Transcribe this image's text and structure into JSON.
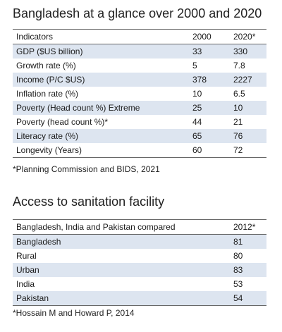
{
  "glance": {
    "title": "Bangladesh at a glance over 2000 and 2020",
    "headers": [
      "Indicators",
      "2000",
      "2020*"
    ],
    "rows": [
      [
        "GDP ($US billion)",
        "33",
        "330"
      ],
      [
        "Growth rate (%)",
        "5",
        "7.8"
      ],
      [
        "Income (P/C $US)",
        "378",
        "2227"
      ],
      [
        "Inflation rate (%)",
        "10",
        "6.5"
      ],
      [
        "Poverty (Head count %) Extreme",
        "25",
        "10"
      ],
      [
        "Poverty (head count %)*",
        "44",
        "21"
      ],
      [
        "Literacy rate (%)",
        "65",
        "76"
      ],
      [
        "Longevity (Years)",
        "60",
        "72"
      ]
    ],
    "note": "*Planning Commission and BIDS, 2021"
  },
  "sanitation": {
    "title": "Access to sanitation facility",
    "headers": [
      "Bangladesh, India and Pakistan compared",
      "2012*"
    ],
    "rows": [
      [
        "Bangladesh",
        "81"
      ],
      [
        "Rural",
        "80"
      ],
      [
        "Urban",
        "83"
      ],
      [
        "India",
        "53"
      ],
      [
        "Pakistan",
        "54"
      ]
    ],
    "note": "*Hossain M and Howard P, 2014"
  },
  "colors": {
    "shaded_row": "#dde5f0",
    "rule": "#666666"
  }
}
